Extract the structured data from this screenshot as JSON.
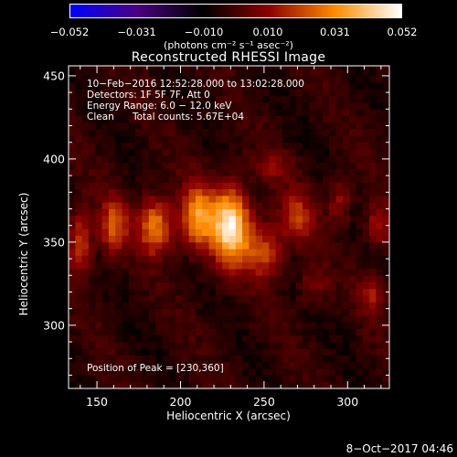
{
  "colorbar": {
    "tick_labels": [
      "−0.052",
      "−0.031",
      "−0.010",
      "0.010",
      "0.031",
      "0.052"
    ],
    "tick_values": [
      -0.052,
      -0.031,
      -0.01,
      0.01,
      0.031,
      0.052
    ],
    "units": "(photons cm⁻² s⁻¹ asec⁻²)",
    "colors": [
      "#0000ff",
      "#4b0082",
      "#000000",
      "#8b0000",
      "#ff8c00",
      "#ffffff"
    ]
  },
  "annotations": {
    "time_range": "10−Feb−2016 12:52:28.000 to 13:02:28.000",
    "detectors": "Detectors: 1F 5F 7F, Att 0",
    "energy_range": "Energy Range: 6.0 − 12.0 keV",
    "clean_label": "Clean",
    "total_counts": "Total counts: 5.67E+04",
    "peak_position": "Position of Peak = [230,360]"
  },
  "footer_stamp": "8−Oct−2017 04:46",
  "chart_data": {
    "type": "heatmap",
    "title": "Reconstructed RHESSI Image",
    "xlabel": "Heliocentric X (arcsec)",
    "ylabel": "Heliocentric Y (arcsec)",
    "xlim": [
      133,
      325
    ],
    "ylim": [
      262,
      456
    ],
    "x_ticks": [
      150,
      200,
      250,
      300
    ],
    "y_ticks": [
      300,
      350,
      400,
      450
    ],
    "x_tick_labels": [
      "150",
      "200",
      "250",
      "300"
    ],
    "y_tick_labels": [
      "300",
      "350",
      "400",
      "450"
    ],
    "value_range": [
      -0.052,
      0.052
    ],
    "peak": [
      230,
      360
    ],
    "sources": [
      {
        "x": 230,
        "y": 360,
        "amp": 0.052,
        "sx": 8,
        "sy": 16
      },
      {
        "x": 210,
        "y": 365,
        "amp": 0.036,
        "sx": 7,
        "sy": 14
      },
      {
        "x": 185,
        "y": 360,
        "amp": 0.034,
        "sx": 7,
        "sy": 12
      },
      {
        "x": 160,
        "y": 360,
        "amp": 0.026,
        "sx": 6,
        "sy": 12
      },
      {
        "x": 250,
        "y": 345,
        "amp": 0.024,
        "sx": 8,
        "sy": 12
      },
      {
        "x": 270,
        "y": 365,
        "amp": 0.022,
        "sx": 7,
        "sy": 11
      },
      {
        "x": 140,
        "y": 350,
        "amp": 0.024,
        "sx": 5,
        "sy": 14
      },
      {
        "x": 295,
        "y": 375,
        "amp": 0.016,
        "sx": 5,
        "sy": 9
      },
      {
        "x": 318,
        "y": 360,
        "amp": 0.018,
        "sx": 5,
        "sy": 9
      },
      {
        "x": 315,
        "y": 320,
        "amp": 0.016,
        "sx": 6,
        "sy": 9
      },
      {
        "x": 280,
        "y": 325,
        "amp": 0.012,
        "sx": 6,
        "sy": 8
      },
      {
        "x": 255,
        "y": 395,
        "amp": 0.012,
        "sx": 8,
        "sy": 6
      }
    ]
  }
}
